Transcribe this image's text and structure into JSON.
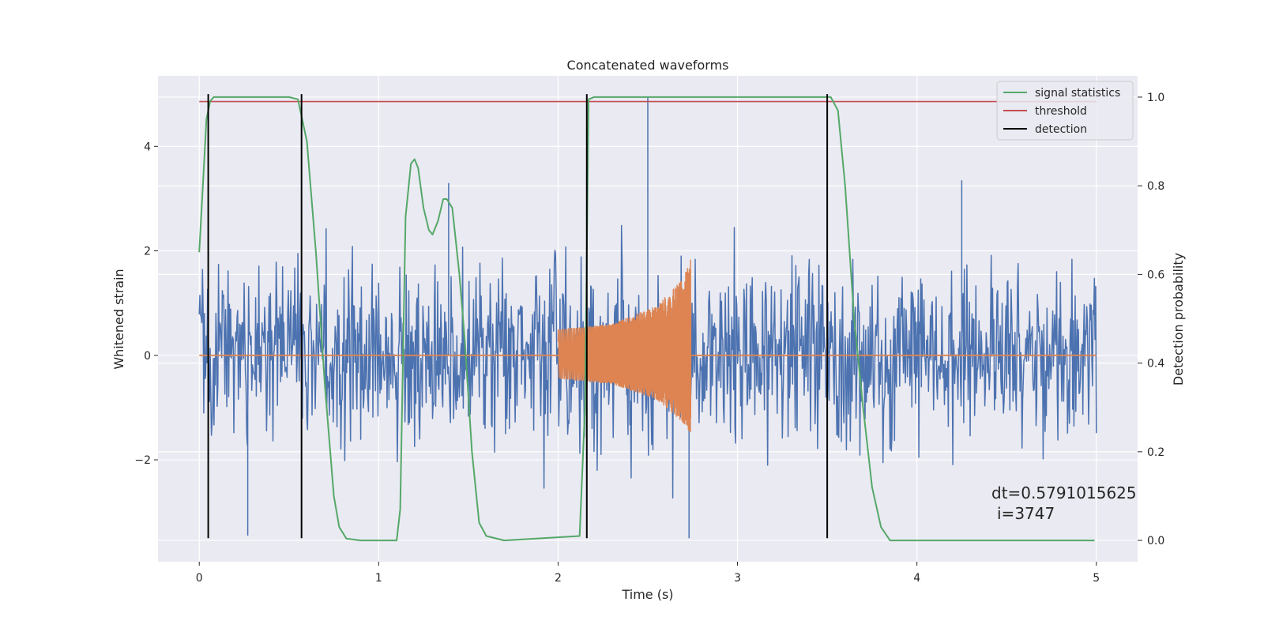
{
  "chart_data": {
    "type": "line",
    "title": "Concatenated waveforms",
    "xlabel": "Time (s)",
    "ylabel": "Whitened strain",
    "y2label": "Detection probability",
    "xlim": [
      -0.23,
      5.23
    ],
    "ylim": [
      -3.95,
      5.35
    ],
    "y2lim": [
      -0.048,
      1.048
    ],
    "xticks": [
      0,
      1,
      2,
      3,
      4,
      5
    ],
    "yticks": [
      -2,
      0,
      2,
      4
    ],
    "y2ticks": [
      0.0,
      0.2,
      0.4,
      0.6,
      0.8,
      1.0
    ],
    "grid": true,
    "legend_position": "top-right",
    "annotation": {
      "line1": "dt=0.5791015625",
      "line2": "i=3747",
      "x": 4.5,
      "y": -2.55
    },
    "colors": {
      "noise": "#4c72b0",
      "injection": "#dd8452",
      "statistic": "#55a868",
      "threshold": "#c44e52",
      "detection": "#000000",
      "background": "#eaeaf2",
      "grid": "#ffffff"
    },
    "series": [
      {
        "name": "",
        "axis": "left",
        "color": "#4c72b0",
        "kind": "whitened noise",
        "x_range": [
          0,
          5
        ],
        "noise_std": 0.85,
        "y_min": -3.5,
        "y_max": 4.95,
        "spikes": [
          {
            "x": 2.5,
            "y": 4.95
          },
          {
            "x": 2.73,
            "y": -3.5
          },
          {
            "x": 0.27,
            "y": -3.45
          },
          {
            "x": 1.39,
            "y": 3.3
          },
          {
            "x": 4.25,
            "y": 3.35
          }
        ]
      },
      {
        "name": "",
        "axis": "left",
        "color": "#dd8452",
        "kind": "chirp injection",
        "x_range": [
          2.0,
          2.74
        ],
        "upper_envelope": {
          "x": [
            2.0,
            2.3,
            2.55,
            2.7,
            2.74
          ],
          "y": [
            0.5,
            0.6,
            0.95,
            1.5,
            1.9
          ]
        },
        "lower_envelope": {
          "x": [
            2.0,
            2.3,
            2.55,
            2.7,
            2.74
          ],
          "y": [
            -0.45,
            -0.55,
            -0.85,
            -1.3,
            -1.5
          ]
        }
      },
      {
        "name": "signal statistics",
        "axis": "right",
        "color": "#55a868",
        "x": [
          0.0,
          0.02,
          0.04,
          0.06,
          0.08,
          0.1,
          0.5,
          0.55,
          0.6,
          0.65,
          0.7,
          0.75,
          0.78,
          0.82,
          0.9,
          1.1,
          1.12,
          1.15,
          1.18,
          1.2,
          1.22,
          1.25,
          1.28,
          1.3,
          1.33,
          1.36,
          1.38,
          1.41,
          1.45,
          1.48,
          1.52,
          1.56,
          1.6,
          1.7,
          2.12,
          2.15,
          2.17,
          2.2,
          2.25,
          3.52,
          3.56,
          3.6,
          3.65,
          3.7,
          3.75,
          3.8,
          3.85,
          4.99
        ],
        "y": [
          0.65,
          0.8,
          0.95,
          0.99,
          1.0,
          1.0,
          1.0,
          0.995,
          0.9,
          0.65,
          0.35,
          0.1,
          0.03,
          0.004,
          0.0,
          0.0,
          0.07,
          0.73,
          0.85,
          0.86,
          0.84,
          0.75,
          0.7,
          0.69,
          0.72,
          0.77,
          0.77,
          0.75,
          0.6,
          0.45,
          0.2,
          0.04,
          0.01,
          0.0,
          0.01,
          0.3,
          0.995,
          1.0,
          1.0,
          1.0,
          0.97,
          0.8,
          0.5,
          0.3,
          0.12,
          0.03,
          0.0,
          0.0
        ]
      },
      {
        "name": "threshold",
        "axis": "right",
        "color": "#c44e52",
        "x": [
          0.0,
          5.0
        ],
        "y": [
          0.99,
          0.99
        ]
      },
      {
        "name": "detection",
        "axis": "left",
        "color": "#000000",
        "x": [
          0.05,
          0.57,
          2.16,
          3.5
        ],
        "y_from": -3.5,
        "y_to": 5.0
      }
    ]
  }
}
